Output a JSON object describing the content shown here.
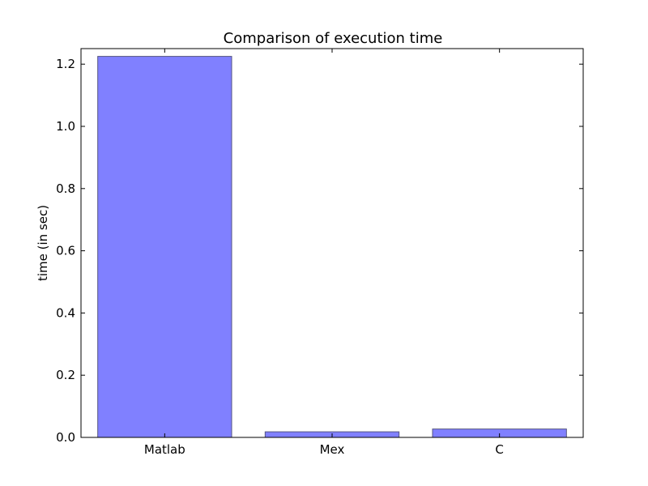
{
  "chart_data": {
    "type": "bar",
    "title": "Comparison of execution time",
    "xlabel": "",
    "ylabel": "time (in sec)",
    "categories": [
      "Matlab",
      "Mex",
      "C"
    ],
    "values": [
      1.225,
      0.018,
      0.027
    ],
    "ylim": [
      0,
      1.25
    ],
    "yticks": [
      0.0,
      0.2,
      0.4,
      0.6,
      0.8,
      1.0,
      1.2
    ],
    "ytick_labels": [
      "0.0",
      "0.2",
      "0.4",
      "0.6",
      "0.8",
      "1.0",
      "1.2"
    ],
    "grid": false,
    "legend": "none",
    "bar_color": "#8080ff",
    "bar_edge_color": "#555580"
  }
}
